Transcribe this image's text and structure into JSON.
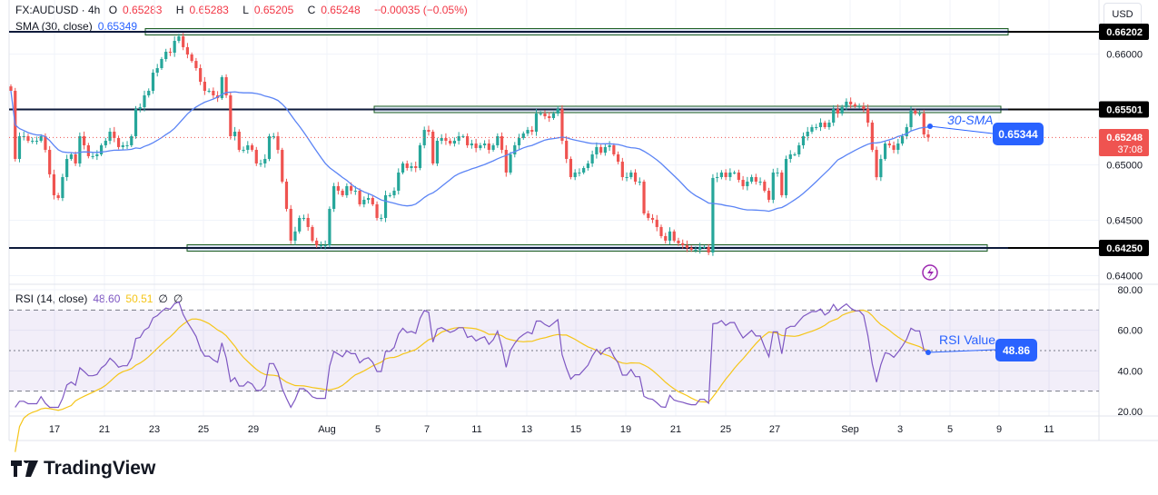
{
  "header": {
    "symbol": "FX:AUDUSD · 4h",
    "open_label": "O",
    "open": "0.65283",
    "high_label": "H",
    "high": "0.65283",
    "low_label": "L",
    "low": "0.65205",
    "close_label": "C",
    "close": "0.65248",
    "change": "−0.00035 (−0.05%)",
    "sma_label": "SMA (30, close)",
    "sma_value": "0.65349"
  },
  "currency_button": "USD",
  "rsi_header": {
    "label": "RSI (14, close)",
    "value": "48.60",
    "ma_value": "50.51",
    "extra1": "∅",
    "extra2": "∅"
  },
  "annotations": {
    "sma_text": "30-SMA",
    "sma_callout": "0.65344",
    "rsi_text": "RSI Value",
    "rsi_callout": "48.86",
    "price_label": "0.65248",
    "countdown": "37:08"
  },
  "colors": {
    "up": "#26a69a",
    "down": "#ef5350",
    "sma": "#5b84f5",
    "rsi": "#7e57c2",
    "rsi_ma": "#f5c518",
    "callout": "#2962ff",
    "zone_fill": "#0d1a3a",
    "zone_border": "#1b5e20"
  },
  "brand": "TradingView",
  "icons": {
    "alert": "lightning-icon"
  },
  "chart_data": [
    {
      "type": "candlestick",
      "symbol": "FX:AUDUSD",
      "timeframe": "4h",
      "ylim": [
        0.639,
        0.6625
      ],
      "y_ticks": [
        "0.66000",
        "0.65000",
        "0.64500",
        "0.64000"
      ],
      "x_ticks": [
        "17",
        "21",
        "23",
        "25",
        "29",
        "Aug",
        "5",
        "7",
        "11",
        "13",
        "15",
        "19",
        "21",
        "25",
        "27",
        "Sep",
        "3",
        "5",
        "9",
        "11"
      ],
      "horizontal_levels": [
        {
          "value": 0.66202,
          "label": "0.66202"
        },
        {
          "value": 0.65501,
          "label": "0.65501"
        },
        {
          "value": 0.6425,
          "label": "0.64250"
        }
      ],
      "sma_period": 30,
      "closes": [
        0.65669,
        0.65054,
        0.65259,
        0.65259,
        0.65218,
        0.65218,
        0.65218,
        0.65259,
        0.65136,
        0.64915,
        0.64726,
        0.64701,
        0.6489,
        0.65054,
        0.65095,
        0.65013,
        0.65259,
        0.65177,
        0.65079,
        0.65079,
        0.65095,
        0.65177,
        0.65218,
        0.653,
        0.65243,
        0.65161,
        0.65177,
        0.65177,
        0.65259,
        0.65505,
        0.65521,
        0.65628,
        0.65669,
        0.65833,
        0.65874,
        0.65956,
        0.66022,
        0.66013,
        0.6612,
        0.66161,
        0.66063,
        0.65997,
        0.65939,
        0.65874,
        0.65751,
        0.65669,
        0.65669,
        0.65628,
        0.65603,
        0.65792,
        0.65628,
        0.65259,
        0.653,
        0.65136,
        0.65136,
        0.65177,
        0.65136,
        0.65013,
        0.65013,
        0.65054,
        0.65259,
        0.65259,
        0.65136,
        0.64849,
        0.64603,
        0.64316,
        0.64399,
        0.64521,
        0.64521,
        0.64439,
        0.64316,
        0.64275,
        0.64275,
        0.64275,
        0.64603,
        0.64808,
        0.64767,
        0.64726,
        0.64808,
        0.64767,
        0.64767,
        0.64644,
        0.64685,
        0.64701,
        0.64644,
        0.64521,
        0.64521,
        0.64726,
        0.64726,
        0.64767,
        0.64931,
        0.65013,
        0.64972,
        0.64988,
        0.64972,
        0.65177,
        0.65316,
        0.653,
        0.65013,
        0.65218,
        0.65243,
        0.65218,
        0.65193,
        0.65218,
        0.65259,
        0.65259,
        0.65177,
        0.65193,
        0.65152,
        0.65177,
        0.65193,
        0.65136,
        0.65177,
        0.65259,
        0.65136,
        0.64931,
        0.65095,
        0.65177,
        0.65243,
        0.65284,
        0.65316,
        0.653,
        0.65464,
        0.65464,
        0.65439,
        0.65423,
        0.65464,
        0.65505,
        0.65218,
        0.65054,
        0.6489,
        0.64931,
        0.64931,
        0.64972,
        0.65013,
        0.65095,
        0.65161,
        0.6511,
        0.65161,
        0.65177,
        0.65095,
        0.65029,
        0.6489,
        0.6489,
        0.64931,
        0.64849,
        0.64849,
        0.64562,
        0.64521,
        0.64505,
        0.64439,
        0.64357,
        0.64316,
        0.64399,
        0.64316,
        0.64292,
        0.64275,
        0.64251,
        0.64234,
        0.64234,
        0.64259,
        0.64259,
        0.64209,
        0.64882,
        0.6489,
        0.64931,
        0.6489,
        0.64931,
        0.64931,
        0.64865,
        0.64808,
        0.64849,
        0.6489,
        0.64849,
        0.64849,
        0.64767,
        0.64685,
        0.64931,
        0.64931,
        0.64726,
        0.65054,
        0.65095,
        0.65095,
        0.65177,
        0.65259,
        0.653,
        0.65341,
        0.65341,
        0.65382,
        0.65341,
        0.65382,
        0.65505,
        0.65464,
        0.65521,
        0.65571,
        0.65546,
        0.6553,
        0.6553,
        0.65505,
        0.65382,
        0.65136,
        0.64889,
        0.65054,
        0.65193,
        0.65177,
        0.65136,
        0.65193,
        0.65259,
        0.65341,
        0.65489,
        0.65464,
        0.65464,
        0.65275,
        0.65248
      ]
    },
    {
      "type": "line",
      "title": "RSI (14, close)",
      "ylim": [
        20,
        80
      ],
      "y_ticks": [
        "80.00",
        "60.00",
        "40.00",
        "20.00"
      ],
      "bands": [
        70,
        50,
        30
      ],
      "rsi_period": 14,
      "ma_period": 14
    }
  ]
}
